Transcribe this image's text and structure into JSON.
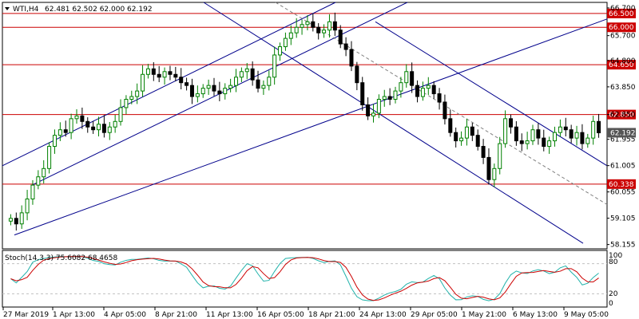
{
  "header": {
    "symbol": "WTI,H4",
    "ohlc": "62.481 62.502 62.000 62.192"
  },
  "indicator": {
    "label": "Stoch(14,3,3) 75.6082 68.4658",
    "scale": [
      "100",
      "80",
      "20",
      "0"
    ]
  },
  "colors": {
    "bull": "#008000",
    "bear": "#000000",
    "level": "#cc0000",
    "channel": "#00008b",
    "stoch_main": "#20b2aa",
    "stoch_signal": "#cc0000",
    "grid": "#c0c0c0"
  },
  "chart_data": {
    "type": "candlestick",
    "ylim": [
      58.0,
      66.9
    ],
    "current_price": "62.192",
    "price_ticks": [
      "66.700",
      "65.700",
      "64.800",
      "63.850",
      "62.850",
      "61.955",
      "61.005",
      "60.055",
      "59.105",
      "58.155"
    ],
    "levels": [
      "66.500",
      "66.000",
      "64.650",
      "62.850",
      "60.338"
    ],
    "time_labels": [
      "27 Mar 2019",
      "1 Apr 13:00",
      "4 Apr 05:00",
      "8 Apr 21:00",
      "11 Apr 13:00",
      "16 Apr 05:00",
      "18 Apr 21:00",
      "24 Apr 13:00",
      "29 Apr 05:00",
      "1 May 21:00",
      "6 May 13:00",
      "9 May 05:00"
    ],
    "closes": [
      59.1,
      58.9,
      59.3,
      59.8,
      60.3,
      60.6,
      60.9,
      61.7,
      62.1,
      62.3,
      62.2,
      62.7,
      62.8,
      62.6,
      62.4,
      62.3,
      62.5,
      62.2,
      62.4,
      62.6,
      63.1,
      63.4,
      63.5,
      63.7,
      64.3,
      64.5,
      64.3,
      64.2,
      64.4,
      64.3,
      64.2,
      64.0,
      63.9,
      63.5,
      63.6,
      63.8,
      63.9,
      63.7,
      63.6,
      63.8,
      63.9,
      64.2,
      64.4,
      64.5,
      64.1,
      63.8,
      63.9,
      64.2,
      65.0,
      65.3,
      65.6,
      65.8,
      66.0,
      66.1,
      66.2,
      66.0,
      65.8,
      65.9,
      66.2,
      65.9,
      65.4,
      65.2,
      64.6,
      64.0,
      63.2,
      62.8,
      62.9,
      63.4,
      63.5,
      63.4,
      63.7,
      64.0,
      64.4,
      63.9,
      63.5,
      63.8,
      63.9,
      63.6,
      63.3,
      62.7,
      62.2,
      61.9,
      62.0,
      62.4,
      62.1,
      61.7,
      61.3,
      60.5,
      60.9,
      61.8,
      62.7,
      62.4,
      61.9,
      61.8,
      61.9,
      62.3,
      62.0,
      61.7,
      61.9,
      62.2,
      62.4,
      62.3,
      62.0,
      62.2,
      61.8,
      62.0,
      62.6,
      62.19
    ]
  }
}
